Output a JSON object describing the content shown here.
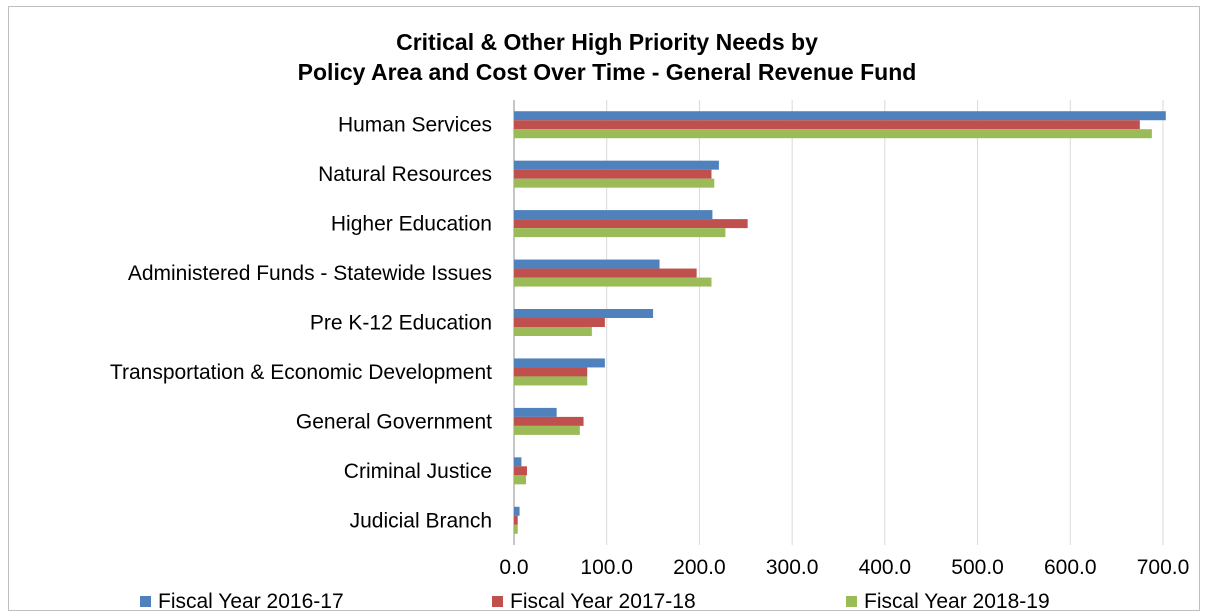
{
  "chart_data": {
    "type": "bar",
    "orientation": "horizontal",
    "title_lines": [
      "Critical & Other High Priority Needs by",
      "Policy Area and Cost Over Time - General Revenue Fund"
    ],
    "categories": [
      "Human Services",
      "Natural Resources",
      "Higher Education",
      "Administered Funds - Statewide Issues",
      "Pre K-12 Education",
      "Transportation & Economic Development",
      "General Government",
      "Criminal Justice",
      "Judicial Branch"
    ],
    "series": [
      {
        "name": "Fiscal Year 2016-17",
        "color": "#4f81bd",
        "values": [
          703,
          221,
          214,
          157,
          150,
          98,
          46,
          8,
          6
        ]
      },
      {
        "name": "Fiscal Year 2017-18",
        "color": "#c0504d",
        "values": [
          675,
          213,
          252,
          197,
          98,
          79,
          75,
          14,
          4
        ]
      },
      {
        "name": "Fiscal Year 2018-19",
        "color": "#9bbb59",
        "values": [
          688,
          216,
          228,
          213,
          84,
          79,
          71,
          13,
          4
        ]
      }
    ],
    "x_ticks": [
      "0.0",
      "100.0",
      "200.0",
      "300.0",
      "400.0",
      "500.0",
      "600.0",
      "700.0"
    ],
    "xlim": [
      0,
      700
    ],
    "grid": true,
    "legend_position": "bottom"
  }
}
